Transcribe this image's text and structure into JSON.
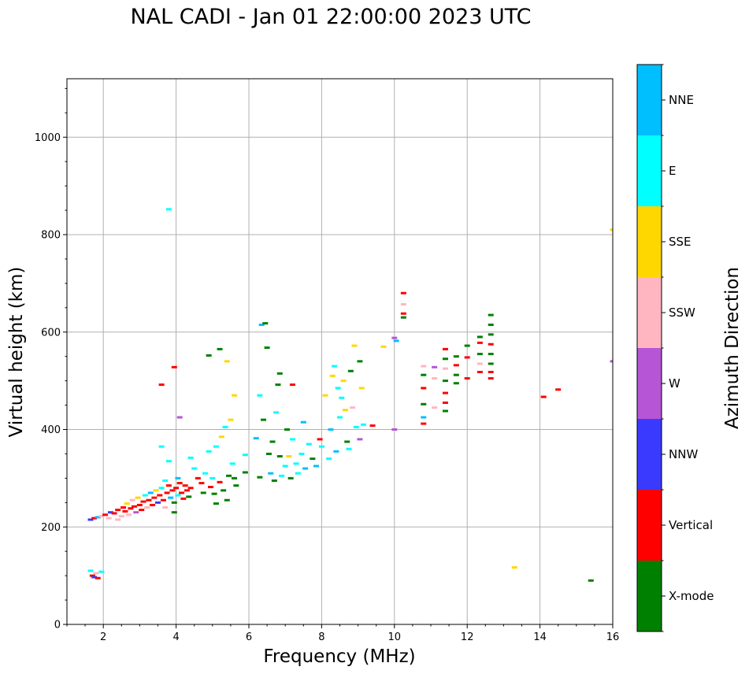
{
  "title": "NAL CADI - Jan 01 22:00:00 2023 UTC",
  "chart_data": {
    "type": "scatter",
    "title": "NAL CADI - Jan 01 22:00:00 2023 UTC",
    "xlabel": "Frequency (MHz)",
    "ylabel": "Virtual height (km)",
    "xlim": [
      1,
      16
    ],
    "ylim": [
      0,
      1120
    ],
    "xticks": [
      2,
      4,
      6,
      8,
      10,
      12,
      14,
      16
    ],
    "yticks": [
      0,
      200,
      400,
      600,
      800,
      1000
    ],
    "grid": true,
    "colorbar": {
      "label": "Azimuth Direction",
      "categories": [
        "X-mode",
        "Vertical",
        "NNW",
        "W",
        "SSW",
        "SSE",
        "E",
        "NNE"
      ],
      "colors": [
        "#008000",
        "#ff0000",
        "#3a3aff",
        "#b656d6",
        "#ffb6c1",
        "#ffd700",
        "#00ffff",
        "#00bfff"
      ]
    },
    "points": [
      {
        "x": 1.7,
        "y": 100,
        "c": "Vertical"
      },
      {
        "x": 1.75,
        "y": 97,
        "c": "NNW"
      },
      {
        "x": 1.85,
        "y": 95,
        "c": "Vertical"
      },
      {
        "x": 1.8,
        "y": 105,
        "c": "SSW"
      },
      {
        "x": 1.95,
        "y": 108,
        "c": "E"
      },
      {
        "x": 1.65,
        "y": 110,
        "c": "E"
      },
      {
        "x": 1.65,
        "y": 215,
        "c": "NNW"
      },
      {
        "x": 1.75,
        "y": 218,
        "c": "Vertical"
      },
      {
        "x": 1.85,
        "y": 220,
        "c": "NNE"
      },
      {
        "x": 1.95,
        "y": 222,
        "c": "SSW"
      },
      {
        "x": 2.05,
        "y": 225,
        "c": "Vertical"
      },
      {
        "x": 2.15,
        "y": 218,
        "c": "SSW"
      },
      {
        "x": 2.2,
        "y": 230,
        "c": "NNW"
      },
      {
        "x": 2.3,
        "y": 228,
        "c": "Vertical"
      },
      {
        "x": 2.4,
        "y": 235,
        "c": "Vertical"
      },
      {
        "x": 2.4,
        "y": 215,
        "c": "SSW"
      },
      {
        "x": 2.5,
        "y": 222,
        "c": "SSW"
      },
      {
        "x": 2.55,
        "y": 240,
        "c": "Vertical"
      },
      {
        "x": 2.6,
        "y": 232,
        "c": "Vertical"
      },
      {
        "x": 2.65,
        "y": 248,
        "c": "SSE"
      },
      {
        "x": 2.7,
        "y": 225,
        "c": "SSW"
      },
      {
        "x": 2.75,
        "y": 238,
        "c": "Vertical"
      },
      {
        "x": 2.8,
        "y": 255,
        "c": "SSW"
      },
      {
        "x": 2.85,
        "y": 242,
        "c": "Vertical"
      },
      {
        "x": 2.9,
        "y": 230,
        "c": "W"
      },
      {
        "x": 2.95,
        "y": 260,
        "c": "SSE"
      },
      {
        "x": 3.0,
        "y": 245,
        "c": "Vertical"
      },
      {
        "x": 3.05,
        "y": 235,
        "c": "Vertical"
      },
      {
        "x": 3.1,
        "y": 252,
        "c": "Vertical"
      },
      {
        "x": 3.15,
        "y": 265,
        "c": "E"
      },
      {
        "x": 3.2,
        "y": 240,
        "c": "SSW"
      },
      {
        "x": 3.25,
        "y": 255,
        "c": "Vertical"
      },
      {
        "x": 3.3,
        "y": 270,
        "c": "NNE"
      },
      {
        "x": 3.35,
        "y": 245,
        "c": "Vertical"
      },
      {
        "x": 3.4,
        "y": 260,
        "c": "Vertical"
      },
      {
        "x": 3.45,
        "y": 275,
        "c": "SSE"
      },
      {
        "x": 3.5,
        "y": 250,
        "c": "NNW"
      },
      {
        "x": 3.55,
        "y": 265,
        "c": "Vertical"
      },
      {
        "x": 3.6,
        "y": 280,
        "c": "E"
      },
      {
        "x": 3.65,
        "y": 255,
        "c": "Vertical"
      },
      {
        "x": 3.7,
        "y": 240,
        "c": "SSW"
      },
      {
        "x": 3.75,
        "y": 270,
        "c": "Vertical"
      },
      {
        "x": 3.8,
        "y": 285,
        "c": "Vertical"
      },
      {
        "x": 3.85,
        "y": 260,
        "c": "NNE"
      },
      {
        "x": 3.9,
        "y": 275,
        "c": "Vertical"
      },
      {
        "x": 3.95,
        "y": 250,
        "c": "X-mode"
      },
      {
        "x": 4.0,
        "y": 280,
        "c": "Vertical"
      },
      {
        "x": 4.05,
        "y": 265,
        "c": "E"
      },
      {
        "x": 4.1,
        "y": 290,
        "c": "Vertical"
      },
      {
        "x": 4.15,
        "y": 270,
        "c": "Vertical"
      },
      {
        "x": 4.2,
        "y": 258,
        "c": "Vertical"
      },
      {
        "x": 4.25,
        "y": 285,
        "c": "Vertical"
      },
      {
        "x": 4.3,
        "y": 275,
        "c": "Vertical"
      },
      {
        "x": 4.35,
        "y": 262,
        "c": "X-mode"
      },
      {
        "x": 4.4,
        "y": 280,
        "c": "Vertical"
      },
      {
        "x": 4.05,
        "y": 300,
        "c": "NNE"
      },
      {
        "x": 3.95,
        "y": 230,
        "c": "X-mode"
      },
      {
        "x": 3.7,
        "y": 295,
        "c": "E"
      },
      {
        "x": 3.8,
        "y": 335,
        "c": "E"
      },
      {
        "x": 3.6,
        "y": 365,
        "c": "E"
      },
      {
        "x": 3.6,
        "y": 492,
        "c": "Vertical"
      },
      {
        "x": 3.8,
        "y": 852,
        "c": "E"
      },
      {
        "x": 3.95,
        "y": 528,
        "c": "Vertical"
      },
      {
        "x": 4.1,
        "y": 425,
        "c": "W"
      },
      {
        "x": 4.4,
        "y": 342,
        "c": "E"
      },
      {
        "x": 4.5,
        "y": 320,
        "c": "E"
      },
      {
        "x": 4.6,
        "y": 300,
        "c": "Vertical"
      },
      {
        "x": 4.7,
        "y": 290,
        "c": "Vertical"
      },
      {
        "x": 4.75,
        "y": 270,
        "c": "X-mode"
      },
      {
        "x": 4.8,
        "y": 310,
        "c": "E"
      },
      {
        "x": 4.9,
        "y": 355,
        "c": "E"
      },
      {
        "x": 4.95,
        "y": 282,
        "c": "Vertical"
      },
      {
        "x": 5.0,
        "y": 300,
        "c": "E"
      },
      {
        "x": 5.05,
        "y": 268,
        "c": "X-mode"
      },
      {
        "x": 5.1,
        "y": 248,
        "c": "X-mode"
      },
      {
        "x": 5.1,
        "y": 365,
        "c": "E"
      },
      {
        "x": 5.2,
        "y": 292,
        "c": "Vertical"
      },
      {
        "x": 5.25,
        "y": 385,
        "c": "SSE"
      },
      {
        "x": 5.3,
        "y": 275,
        "c": "X-mode"
      },
      {
        "x": 5.35,
        "y": 405,
        "c": "E"
      },
      {
        "x": 5.4,
        "y": 255,
        "c": "X-mode"
      },
      {
        "x": 5.45,
        "y": 305,
        "c": "X-mode"
      },
      {
        "x": 5.5,
        "y": 420,
        "c": "SSE"
      },
      {
        "x": 5.55,
        "y": 330,
        "c": "E"
      },
      {
        "x": 5.6,
        "y": 470,
        "c": "SSE"
      },
      {
        "x": 5.65,
        "y": 285,
        "c": "X-mode"
      },
      {
        "x": 5.2,
        "y": 565,
        "c": "X-mode"
      },
      {
        "x": 4.9,
        "y": 552,
        "c": "X-mode"
      },
      {
        "x": 5.4,
        "y": 540,
        "c": "SSE"
      },
      {
        "x": 5.6,
        "y": 300,
        "c": "X-mode"
      },
      {
        "x": 5.9,
        "y": 312,
        "c": "X-mode"
      },
      {
        "x": 5.9,
        "y": 348,
        "c": "E"
      },
      {
        "x": 6.2,
        "y": 382,
        "c": "NNE"
      },
      {
        "x": 6.3,
        "y": 302,
        "c": "X-mode"
      },
      {
        "x": 6.3,
        "y": 470,
        "c": "E"
      },
      {
        "x": 6.35,
        "y": 615,
        "c": "NNE"
      },
      {
        "x": 6.45,
        "y": 618,
        "c": "X-mode"
      },
      {
        "x": 6.4,
        "y": 420,
        "c": "X-mode"
      },
      {
        "x": 6.5,
        "y": 568,
        "c": "X-mode"
      },
      {
        "x": 6.55,
        "y": 350,
        "c": "X-mode"
      },
      {
        "x": 6.6,
        "y": 310,
        "c": "NNE"
      },
      {
        "x": 6.65,
        "y": 375,
        "c": "X-mode"
      },
      {
        "x": 6.7,
        "y": 295,
        "c": "X-mode"
      },
      {
        "x": 6.75,
        "y": 435,
        "c": "E"
      },
      {
        "x": 6.8,
        "y": 492,
        "c": "X-mode"
      },
      {
        "x": 6.85,
        "y": 345,
        "c": "X-mode"
      },
      {
        "x": 6.85,
        "y": 515,
        "c": "X-mode"
      },
      {
        "x": 6.9,
        "y": 305,
        "c": "E"
      },
      {
        "x": 7.0,
        "y": 325,
        "c": "E"
      },
      {
        "x": 7.05,
        "y": 400,
        "c": "X-mode"
      },
      {
        "x": 7.1,
        "y": 345,
        "c": "SSE"
      },
      {
        "x": 7.15,
        "y": 300,
        "c": "X-mode"
      },
      {
        "x": 7.2,
        "y": 380,
        "c": "E"
      },
      {
        "x": 7.2,
        "y": 492,
        "c": "Vertical"
      },
      {
        "x": 7.3,
        "y": 330,
        "c": "E"
      },
      {
        "x": 7.35,
        "y": 310,
        "c": "E"
      },
      {
        "x": 7.45,
        "y": 350,
        "c": "E"
      },
      {
        "x": 7.5,
        "y": 415,
        "c": "NNE"
      },
      {
        "x": 7.55,
        "y": 320,
        "c": "NNE"
      },
      {
        "x": 7.65,
        "y": 370,
        "c": "E"
      },
      {
        "x": 7.75,
        "y": 340,
        "c": "X-mode"
      },
      {
        "x": 7.85,
        "y": 325,
        "c": "NNE"
      },
      {
        "x": 7.95,
        "y": 380,
        "c": "Vertical"
      },
      {
        "x": 8.0,
        "y": 365,
        "c": "E"
      },
      {
        "x": 8.1,
        "y": 470,
        "c": "SSE"
      },
      {
        "x": 8.2,
        "y": 340,
        "c": "E"
      },
      {
        "x": 8.25,
        "y": 400,
        "c": "NNE"
      },
      {
        "x": 8.3,
        "y": 510,
        "c": "SSE"
      },
      {
        "x": 8.35,
        "y": 530,
        "c": "E"
      },
      {
        "x": 8.4,
        "y": 355,
        "c": "NNE"
      },
      {
        "x": 8.45,
        "y": 485,
        "c": "E"
      },
      {
        "x": 8.5,
        "y": 425,
        "c": "E"
      },
      {
        "x": 8.55,
        "y": 465,
        "c": "E"
      },
      {
        "x": 8.6,
        "y": 500,
        "c": "SSE"
      },
      {
        "x": 8.65,
        "y": 440,
        "c": "SSE"
      },
      {
        "x": 8.7,
        "y": 375,
        "c": "X-mode"
      },
      {
        "x": 8.75,
        "y": 360,
        "c": "E"
      },
      {
        "x": 8.8,
        "y": 520,
        "c": "X-mode"
      },
      {
        "x": 8.85,
        "y": 445,
        "c": "SSW"
      },
      {
        "x": 8.9,
        "y": 572,
        "c": "SSE"
      },
      {
        "x": 8.95,
        "y": 405,
        "c": "E"
      },
      {
        "x": 9.05,
        "y": 380,
        "c": "W"
      },
      {
        "x": 9.05,
        "y": 540,
        "c": "X-mode"
      },
      {
        "x": 9.1,
        "y": 485,
        "c": "SSE"
      },
      {
        "x": 9.15,
        "y": 410,
        "c": "E"
      },
      {
        "x": 9.4,
        "y": 408,
        "c": "Vertical"
      },
      {
        "x": 9.7,
        "y": 570,
        "c": "SSE"
      },
      {
        "x": 10.0,
        "y": 400,
        "c": "W"
      },
      {
        "x": 10.0,
        "y": 588,
        "c": "W"
      },
      {
        "x": 10.05,
        "y": 582,
        "c": "NNE"
      },
      {
        "x": 10.25,
        "y": 680,
        "c": "Vertical"
      },
      {
        "x": 10.25,
        "y": 657,
        "c": "SSW"
      },
      {
        "x": 10.25,
        "y": 638,
        "c": "Vertical"
      },
      {
        "x": 10.25,
        "y": 630,
        "c": "X-mode"
      },
      {
        "x": 10.8,
        "y": 530,
        "c": "SSW"
      },
      {
        "x": 10.8,
        "y": 512,
        "c": "X-mode"
      },
      {
        "x": 10.8,
        "y": 485,
        "c": "Vertical"
      },
      {
        "x": 10.8,
        "y": 452,
        "c": "X-mode"
      },
      {
        "x": 10.8,
        "y": 425,
        "c": "NNE"
      },
      {
        "x": 10.8,
        "y": 412,
        "c": "Vertical"
      },
      {
        "x": 11.1,
        "y": 528,
        "c": "W"
      },
      {
        "x": 11.1,
        "y": 505,
        "c": "SSW"
      },
      {
        "x": 11.1,
        "y": 445,
        "c": "SSW"
      },
      {
        "x": 11.4,
        "y": 565,
        "c": "Vertical"
      },
      {
        "x": 11.4,
        "y": 545,
        "c": "X-mode"
      },
      {
        "x": 11.4,
        "y": 525,
        "c": "SSW"
      },
      {
        "x": 11.4,
        "y": 500,
        "c": "X-mode"
      },
      {
        "x": 11.4,
        "y": 475,
        "c": "Vertical"
      },
      {
        "x": 11.4,
        "y": 455,
        "c": "Vertical"
      },
      {
        "x": 11.4,
        "y": 438,
        "c": "X-mode"
      },
      {
        "x": 11.7,
        "y": 550,
        "c": "X-mode"
      },
      {
        "x": 11.7,
        "y": 532,
        "c": "Vertical"
      },
      {
        "x": 11.7,
        "y": 512,
        "c": "X-mode"
      },
      {
        "x": 11.7,
        "y": 495,
        "c": "X-mode"
      },
      {
        "x": 12.0,
        "y": 572,
        "c": "X-mode"
      },
      {
        "x": 12.0,
        "y": 548,
        "c": "Vertical"
      },
      {
        "x": 12.0,
        "y": 505,
        "c": "Vertical"
      },
      {
        "x": 12.35,
        "y": 590,
        "c": "X-mode"
      },
      {
        "x": 12.35,
        "y": 578,
        "c": "Vertical"
      },
      {
        "x": 12.35,
        "y": 555,
        "c": "X-mode"
      },
      {
        "x": 12.35,
        "y": 535,
        "c": "SSW"
      },
      {
        "x": 12.35,
        "y": 518,
        "c": "Vertical"
      },
      {
        "x": 12.65,
        "y": 635,
        "c": "X-mode"
      },
      {
        "x": 12.65,
        "y": 615,
        "c": "X-mode"
      },
      {
        "x": 12.65,
        "y": 595,
        "c": "X-mode"
      },
      {
        "x": 12.65,
        "y": 575,
        "c": "Vertical"
      },
      {
        "x": 12.65,
        "y": 555,
        "c": "X-mode"
      },
      {
        "x": 12.65,
        "y": 535,
        "c": "X-mode"
      },
      {
        "x": 12.65,
        "y": 518,
        "c": "Vertical"
      },
      {
        "x": 12.65,
        "y": 505,
        "c": "Vertical"
      },
      {
        "x": 13.3,
        "y": 117,
        "c": "SSE"
      },
      {
        "x": 14.1,
        "y": 467,
        "c": "Vertical"
      },
      {
        "x": 14.5,
        "y": 482,
        "c": "Vertical"
      },
      {
        "x": 15.4,
        "y": 90,
        "c": "X-mode"
      },
      {
        "x": 16.0,
        "y": 810,
        "c": "SSE"
      },
      {
        "x": 16.0,
        "y": 540,
        "c": "W"
      }
    ]
  }
}
